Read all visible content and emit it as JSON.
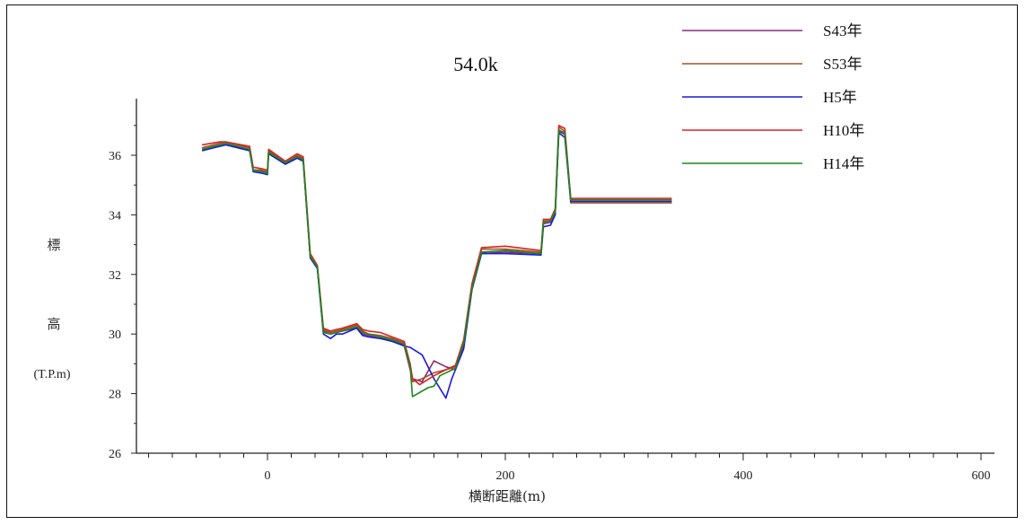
{
  "chart_data": {
    "type": "line",
    "title": "54.0k",
    "xlabel": "横断距離(m)",
    "ylabel_chars": [
      "標",
      "高"
    ],
    "ylabel_unit": "(T.P.m)",
    "xlim": [
      -110,
      610
    ],
    "ylim": [
      26,
      38
    ],
    "xticks": [
      0,
      200,
      400,
      600
    ],
    "yticks": [
      26,
      28,
      30,
      32,
      34,
      36
    ],
    "legend_position": "top-right",
    "grid": false,
    "series": [
      {
        "name": "S43年",
        "color": "#8b2a7a",
        "x": [
          -55,
          -40,
          -35,
          -15,
          -12,
          -5,
          0,
          1,
          15,
          25,
          30,
          36,
          42,
          47,
          53,
          58,
          63,
          75,
          80,
          85,
          95,
          105,
          115,
          120,
          122,
          130,
          140,
          150,
          158,
          165,
          172,
          180,
          200,
          230,
          232,
          238,
          242,
          245,
          250,
          255,
          260,
          265,
          340
        ],
        "y": [
          36.2,
          36.3,
          36.35,
          36.2,
          35.5,
          35.5,
          35.4,
          36.1,
          35.7,
          35.95,
          35.85,
          32.6,
          32.2,
          30.1,
          30.0,
          30.05,
          30.1,
          30.2,
          30.0,
          29.95,
          29.85,
          29.8,
          29.6,
          28.8,
          28.5,
          28.4,
          29.1,
          28.9,
          28.8,
          29.6,
          31.5,
          32.7,
          32.75,
          32.7,
          33.7,
          33.75,
          34.1,
          36.8,
          36.7,
          34.5,
          34.5,
          34.5,
          34.5
        ]
      },
      {
        "name": "S53年",
        "color": "#a0522d",
        "x": [
          -55,
          -40,
          -35,
          -15,
          -12,
          -5,
          0,
          1,
          15,
          25,
          30,
          36,
          42,
          47,
          53,
          58,
          63,
          75,
          80,
          85,
          95,
          105,
          115,
          120,
          122,
          130,
          140,
          150,
          158,
          165,
          172,
          180,
          200,
          230,
          232,
          238,
          242,
          245,
          250,
          255,
          260,
          265,
          340
        ],
        "y": [
          36.25,
          36.4,
          36.45,
          36.25,
          35.5,
          35.5,
          35.45,
          36.15,
          35.75,
          36.0,
          35.9,
          32.6,
          32.25,
          30.15,
          30.05,
          30.1,
          30.15,
          30.3,
          30.1,
          30.0,
          29.95,
          29.85,
          29.7,
          28.9,
          28.4,
          28.5,
          28.7,
          28.8,
          28.9,
          29.7,
          31.6,
          32.85,
          32.85,
          32.75,
          33.8,
          33.8,
          34.15,
          36.95,
          36.8,
          34.4,
          34.4,
          34.4,
          34.4
        ]
      },
      {
        "name": "H5年",
        "color": "#1a1adc",
        "x": [
          -55,
          -40,
          -35,
          -15,
          -12,
          -5,
          0,
          1,
          15,
          25,
          30,
          36,
          42,
          47,
          53,
          58,
          63,
          75,
          80,
          85,
          95,
          105,
          115,
          120,
          130,
          140,
          150,
          155,
          158,
          165,
          172,
          180,
          200,
          230,
          232,
          238,
          242,
          245,
          250,
          255,
          260,
          265,
          340
        ],
        "y": [
          36.15,
          36.3,
          36.35,
          36.15,
          35.45,
          35.4,
          35.35,
          36.05,
          35.7,
          35.9,
          35.8,
          32.55,
          32.2,
          30.0,
          29.85,
          30.0,
          30.0,
          30.2,
          29.95,
          29.9,
          29.85,
          29.75,
          29.6,
          29.55,
          29.3,
          28.5,
          27.85,
          28.5,
          28.8,
          29.5,
          31.5,
          32.7,
          32.7,
          32.65,
          33.6,
          33.65,
          34.0,
          36.75,
          36.6,
          34.45,
          34.45,
          34.45,
          34.45
        ]
      },
      {
        "name": "H10年",
        "color": "#e02020",
        "x": [
          -55,
          -40,
          -35,
          -15,
          -12,
          -5,
          0,
          1,
          15,
          25,
          30,
          36,
          42,
          47,
          53,
          58,
          63,
          75,
          80,
          85,
          95,
          105,
          115,
          120,
          122,
          128,
          140,
          150,
          158,
          165,
          172,
          180,
          200,
          230,
          232,
          238,
          242,
          245,
          250,
          255,
          260,
          265,
          340
        ],
        "y": [
          36.35,
          36.45,
          36.45,
          36.3,
          35.6,
          35.55,
          35.5,
          36.2,
          35.8,
          36.05,
          35.95,
          32.7,
          32.3,
          30.2,
          30.1,
          30.15,
          30.2,
          30.35,
          30.15,
          30.1,
          30.05,
          29.9,
          29.75,
          29.0,
          28.5,
          28.3,
          28.6,
          28.8,
          28.95,
          29.8,
          31.7,
          32.9,
          32.95,
          32.8,
          33.85,
          33.85,
          34.2,
          37.0,
          36.9,
          34.55,
          34.55,
          34.55,
          34.55
        ]
      },
      {
        "name": "H14年",
        "color": "#1a8a1a",
        "x": [
          -55,
          -40,
          -35,
          -15,
          -12,
          -5,
          0,
          1,
          15,
          25,
          30,
          36,
          42,
          47,
          53,
          58,
          63,
          75,
          80,
          85,
          95,
          105,
          115,
          120,
          122,
          135,
          140,
          145,
          158,
          165,
          172,
          180,
          200,
          230,
          232,
          238,
          242,
          245,
          250,
          255,
          260,
          265,
          340
        ],
        "y": [
          36.2,
          36.35,
          36.4,
          36.2,
          35.5,
          35.45,
          35.4,
          36.1,
          35.75,
          35.95,
          35.85,
          32.6,
          32.25,
          30.05,
          30.0,
          30.05,
          30.1,
          30.25,
          30.05,
          30.0,
          29.9,
          29.8,
          29.65,
          28.9,
          27.9,
          28.2,
          28.25,
          28.6,
          28.85,
          29.7,
          31.55,
          32.75,
          32.8,
          32.7,
          33.75,
          33.8,
          34.1,
          36.85,
          36.75,
          34.5,
          34.5,
          34.5,
          34.5
        ]
      }
    ]
  }
}
